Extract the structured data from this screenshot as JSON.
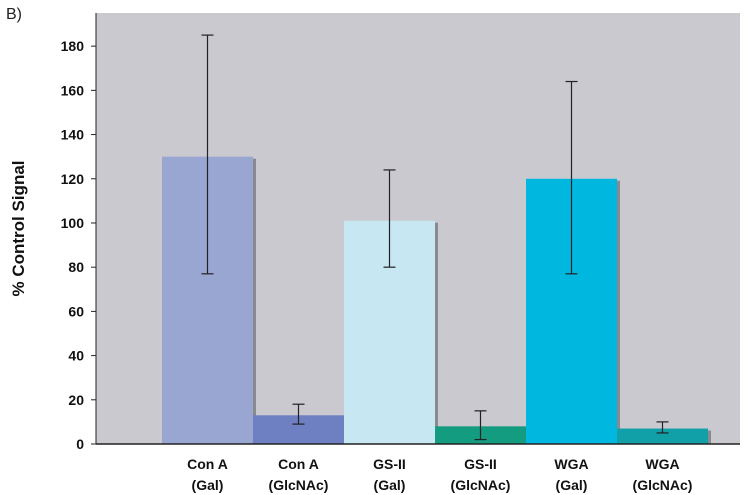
{
  "panel_label": "B)",
  "chart_data": {
    "type": "bar",
    "title": "",
    "xlabel": "",
    "ylabel": "% Control Signal",
    "ylim": [
      0,
      195
    ],
    "yticks": [
      0,
      20,
      40,
      60,
      80,
      100,
      120,
      140,
      160,
      180
    ],
    "grid": false,
    "legend": "none",
    "plot_background": "#c9c9cf",
    "categories": [
      {
        "line1": "Con A",
        "line2": "(Gal)",
        "value": 130,
        "err_low": 77,
        "err_high": 185,
        "color": "#99a6d2"
      },
      {
        "line1": "Con A",
        "line2": "(GlcNAc)",
        "value": 13,
        "err_low": 9,
        "err_high": 18,
        "color": "#6f80c2"
      },
      {
        "line1": "GS-II",
        "line2": "(Gal)",
        "value": 101,
        "err_low": 80,
        "err_high": 124,
        "color": "#c7e7f3"
      },
      {
        "line1": "GS-II",
        "line2": "(GlcNAc)",
        "value": 8,
        "err_low": 2,
        "err_high": 15,
        "color": "#149c80"
      },
      {
        "line1": "WGA",
        "line2": "(Gal)",
        "value": 120,
        "err_low": 77,
        "err_high": 164,
        "color": "#00b7df"
      },
      {
        "line1": "WGA",
        "line2": "(GlcNAc)",
        "value": 7,
        "err_low": 5,
        "err_high": 10,
        "color": "#12a0a8"
      }
    ]
  }
}
